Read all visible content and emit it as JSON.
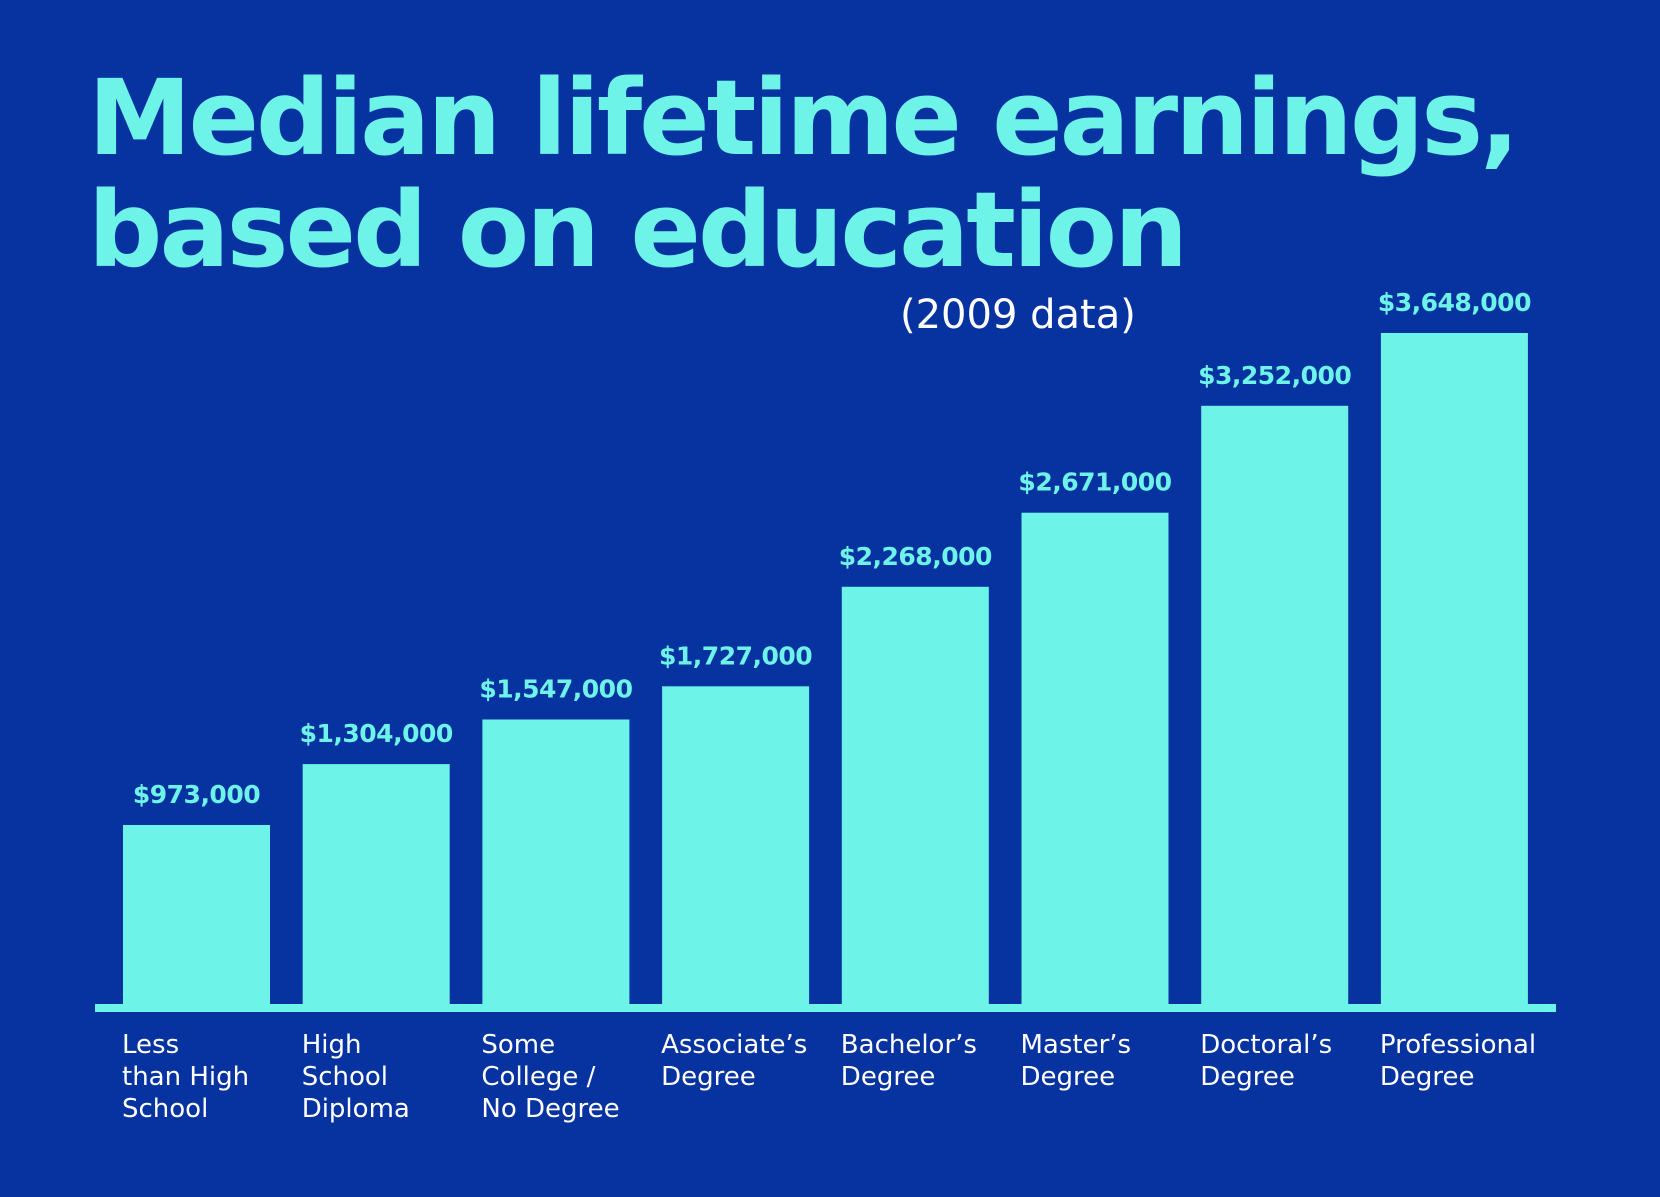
{
  "chart_data": {
    "type": "bar",
    "title_lines": [
      "Median lifetime earnings,",
      "based on education"
    ],
    "subtitle": "(2009 data)",
    "categories": [
      [
        "Less",
        "than High",
        "School"
      ],
      [
        "High",
        "School",
        "Diploma"
      ],
      [
        "Some",
        "College /",
        "No Degree"
      ],
      [
        "Associate’s",
        "Degree"
      ],
      [
        "Bachelor’s",
        "Degree"
      ],
      [
        "Master’s",
        "Degree"
      ],
      [
        "Doctoral’s",
        "Degree"
      ],
      [
        "Professional",
        "Degree"
      ]
    ],
    "values": [
      973000,
      1304000,
      1547000,
      1727000,
      2268000,
      2671000,
      3252000,
      3648000
    ],
    "value_labels": [
      "$973,000",
      "$1,304,000",
      "$1,547,000",
      "$1,727,000",
      "$2,268,000",
      "$2,671,000",
      "$3,252,000",
      "$3,648,000"
    ],
    "xlabel": "",
    "ylabel": "",
    "ylim": [
      0,
      3648000
    ],
    "grid": false,
    "legend": "none",
    "colors": {
      "background": "#0733a1",
      "bar": "#6ef3e9",
      "title": "#6ef3e9",
      "subtitle": "#ffffff",
      "category_text": "#ffffff",
      "value_text": "#6ef3e9",
      "baseline": "#6ef3e9"
    }
  }
}
